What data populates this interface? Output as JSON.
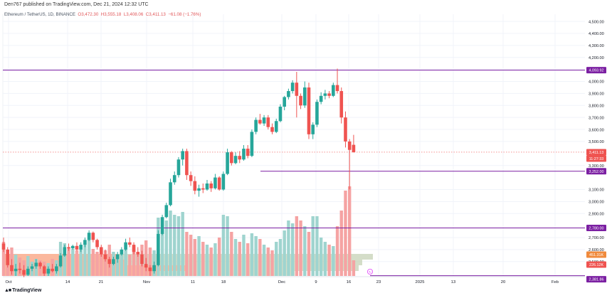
{
  "publish_line": "Den767 published on TradingView.com, Dec 21, 2024 12:32 UTC",
  "header": {
    "symbol": "Ethereum / TetherUS, 1D, BINANCE",
    "o": "O3,472.30",
    "h": "H3,555.18",
    "l": "L3,408.06",
    "c": "C3,411.13",
    "change": "−61.08 (−1.76%)"
  },
  "brand": "TradingView",
  "colors": {
    "up": "#26a69a",
    "down": "#ef5350",
    "level": "#7b1fa2",
    "price_badge": "#ef5350",
    "vol_up": "#9fd4cf",
    "vol_down": "#f5a3a3",
    "vp_up": "#b8c7a4",
    "vp_down": "#f9a07c"
  },
  "x_axis": {
    "ticks": [
      "Oct",
      "14",
      "21",
      "Nov",
      "11",
      "18",
      "Dec",
      "9",
      "16",
      "23",
      "2025",
      "13",
      "20",
      "Feb"
    ]
  },
  "y_axis": {
    "ticks": [
      "4,500.00",
      "4,400.00",
      "4,300.00",
      "4,200.00",
      "4,100.00",
      "4,000.00",
      "3,900.00",
      "3,800.00",
      "3,700.00",
      "3,600.00",
      "3,500.00",
      "3,300.00",
      "3,100.00",
      "3,000.00",
      "2,900.00",
      "2,700.00",
      "2,600.00",
      "2,500.00"
    ]
  },
  "labels": {
    "resistance": "4,093.92",
    "current_price": "3,411.13",
    "countdown": "11:27:33",
    "support_mid": "3,252.00",
    "support_low": "2,780.00",
    "bottom_level": "2,381.86",
    "volume_a": "226.12K",
    "volume_b": "451.31K"
  },
  "chart_data": {
    "type": "candlestick",
    "title": "Ethereum / TetherUS, 1D, BINANCE",
    "xlabel": "",
    "ylabel": "",
    "ylim": [
      2380,
      4560
    ],
    "candles": [
      [
        2650,
        2700,
        2580,
        2600
      ],
      [
        2600,
        2620,
        2450,
        2470
      ],
      [
        2470,
        2520,
        2390,
        2420
      ],
      [
        2420,
        2480,
        2380,
        2440
      ],
      [
        2440,
        2490,
        2400,
        2430
      ],
      [
        2430,
        2470,
        2370,
        2390
      ],
      [
        2390,
        2460,
        2380,
        2440
      ],
      [
        2440,
        2480,
        2420,
        2460
      ],
      [
        2460,
        2520,
        2440,
        2490
      ],
      [
        2490,
        2500,
        2440,
        2460
      ],
      [
        2460,
        2470,
        2380,
        2400
      ],
      [
        2400,
        2460,
        2380,
        2440
      ],
      [
        2440,
        2480,
        2410,
        2420
      ],
      [
        2420,
        2480,
        2400,
        2460
      ],
      [
        2460,
        2570,
        2450,
        2550
      ],
      [
        2550,
        2640,
        2540,
        2620
      ],
      [
        2620,
        2650,
        2590,
        2610
      ],
      [
        2610,
        2640,
        2600,
        2630
      ],
      [
        2630,
        2660,
        2590,
        2600
      ],
      [
        2600,
        2660,
        2580,
        2640
      ],
      [
        2640,
        2700,
        2620,
        2680
      ],
      [
        2680,
        2760,
        2670,
        2740
      ],
      [
        2740,
        2750,
        2660,
        2680
      ],
      [
        2680,
        2690,
        2600,
        2620
      ],
      [
        2620,
        2640,
        2540,
        2560
      ],
      [
        2560,
        2600,
        2500,
        2520
      ],
      [
        2520,
        2540,
        2450,
        2480
      ],
      [
        2480,
        2540,
        2470,
        2520
      ],
      [
        2520,
        2580,
        2490,
        2560
      ],
      [
        2560,
        2620,
        2550,
        2600
      ],
      [
        2600,
        2690,
        2590,
        2660
      ],
      [
        2660,
        2700,
        2620,
        2640
      ],
      [
        2640,
        2660,
        2560,
        2580
      ],
      [
        2580,
        2620,
        2540,
        2560
      ],
      [
        2560,
        2590,
        2460,
        2480
      ],
      [
        2480,
        2530,
        2420,
        2450
      ],
      [
        2450,
        2470,
        2380,
        2420
      ],
      [
        2420,
        2500,
        2400,
        2470
      ],
      [
        2470,
        2760,
        2460,
        2730
      ],
      [
        2730,
        2890,
        2720,
        2870
      ],
      [
        2870,
        2990,
        2860,
        2970
      ],
      [
        2970,
        3190,
        2960,
        3160
      ],
      [
        3160,
        3250,
        3140,
        3220
      ],
      [
        3220,
        3370,
        3200,
        3350
      ],
      [
        3350,
        3440,
        3300,
        3420
      ],
      [
        3420,
        3440,
        3180,
        3220
      ],
      [
        3220,
        3250,
        3130,
        3170
      ],
      [
        3170,
        3210,
        3060,
        3090
      ],
      [
        3090,
        3140,
        3040,
        3110
      ],
      [
        3110,
        3150,
        3070,
        3100
      ],
      [
        3100,
        3180,
        3090,
        3150
      ],
      [
        3150,
        3170,
        3080,
        3110
      ],
      [
        3110,
        3230,
        3100,
        3200
      ],
      [
        3200,
        3210,
        3090,
        3100
      ],
      [
        3100,
        3250,
        3090,
        3230
      ],
      [
        3230,
        3440,
        3220,
        3410
      ],
      [
        3410,
        3420,
        3300,
        3320
      ],
      [
        3320,
        3410,
        3310,
        3380
      ],
      [
        3380,
        3420,
        3320,
        3350
      ],
      [
        3350,
        3470,
        3340,
        3440
      ],
      [
        3440,
        3470,
        3360,
        3380
      ],
      [
        3380,
        3600,
        3370,
        3580
      ],
      [
        3580,
        3700,
        3560,
        3680
      ],
      [
        3680,
        3730,
        3640,
        3650
      ],
      [
        3650,
        3720,
        3630,
        3700
      ],
      [
        3700,
        3720,
        3600,
        3620
      ],
      [
        3620,
        3650,
        3560,
        3580
      ],
      [
        3580,
        3690,
        3570,
        3670
      ],
      [
        3670,
        3810,
        3660,
        3790
      ],
      [
        3790,
        3880,
        3760,
        3870
      ],
      [
        3870,
        3940,
        3850,
        3920
      ],
      [
        3920,
        4010,
        3900,
        3990
      ],
      [
        3990,
        4080,
        3700,
        3880
      ],
      [
        3880,
        3900,
        3770,
        3800
      ],
      [
        3800,
        4000,
        3780,
        3950
      ],
      [
        3950,
        3990,
        3520,
        3560
      ],
      [
        3560,
        3660,
        3520,
        3640
      ],
      [
        3640,
        3850,
        3620,
        3830
      ],
      [
        3830,
        3910,
        3810,
        3880
      ],
      [
        3880,
        3930,
        3850,
        3900
      ],
      [
        3900,
        3920,
        3860,
        3880
      ],
      [
        3880,
        3990,
        3870,
        3970
      ],
      [
        3970,
        4107,
        3900,
        3920
      ],
      [
        3920,
        3950,
        3650,
        3700
      ],
      [
        3700,
        3750,
        3450,
        3500
      ],
      [
        3500,
        3520,
        3100,
        3430
      ],
      [
        3472.3,
        3555.18,
        3408.06,
        3411.13
      ]
    ],
    "volume": [
      48,
      34,
      40,
      30,
      26,
      22,
      28,
      20,
      24,
      22,
      20,
      18,
      24,
      22,
      48,
      46,
      40,
      38,
      36,
      40,
      46,
      52,
      38,
      34,
      40,
      36,
      44,
      34,
      30,
      36,
      38,
      30,
      42,
      34,
      44,
      50,
      40,
      36,
      82,
      82,
      78,
      92,
      86,
      84,
      90,
      62,
      58,
      52,
      56,
      48,
      44,
      40,
      46,
      54,
      86,
      84,
      62,
      52,
      48,
      58,
      46,
      60,
      56,
      52,
      44,
      40,
      36,
      48,
      52,
      64,
      78,
      74,
      84,
      78,
      70,
      62,
      84,
      84,
      54,
      48,
      44,
      42,
      70,
      92,
      120,
      126,
      22
    ]
  }
}
